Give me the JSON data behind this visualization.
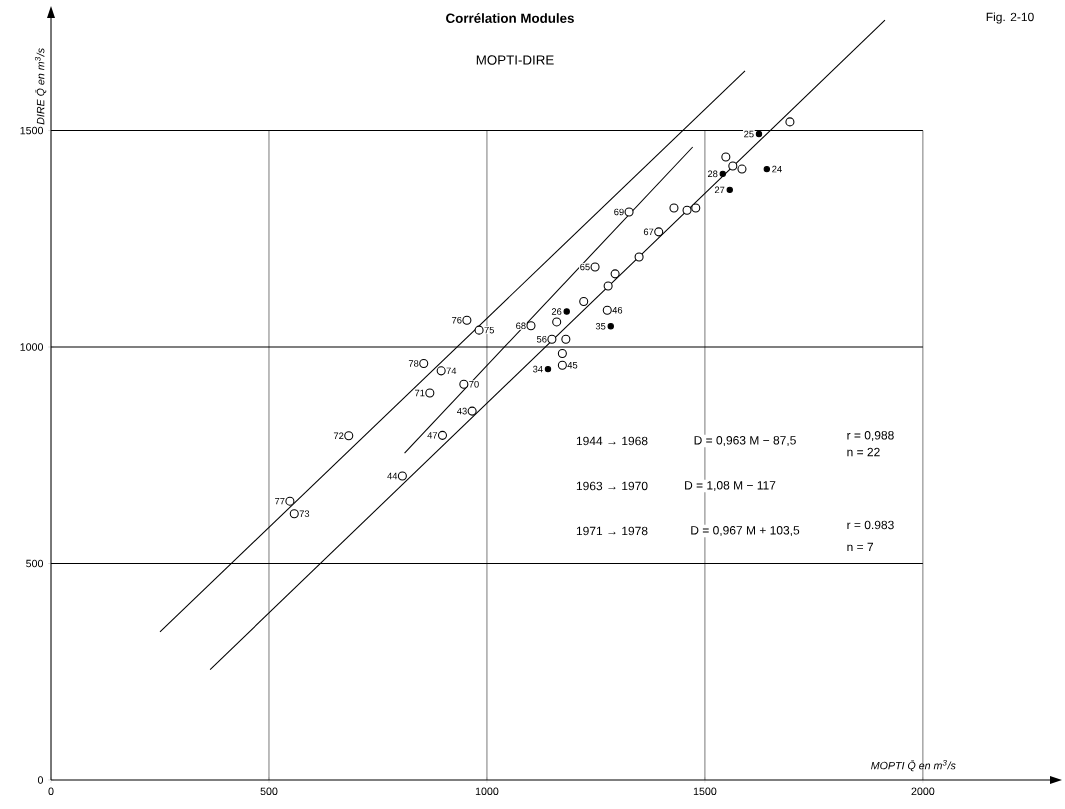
{
  "chart_data": {
    "type": "scatter",
    "title": "Corrélation Modules",
    "subtitle": "MOPTI-DIRE",
    "xlabel": "MOPTI Q̄ en m$^{3}$/s",
    "ylabel": "DIRE Q̄ en m$^{3}$/s",
    "xlim": [
      0,
      2300
    ],
    "ylim": [
      0,
      1780
    ],
    "xticks": [
      0,
      500,
      1000,
      1500,
      2000
    ],
    "yticks": [
      0,
      500,
      1000,
      1500
    ],
    "ref_lines": [
      {
        "axis": "y",
        "value": 500
      },
      {
        "axis": "y",
        "value": 1000
      },
      {
        "axis": "y",
        "value": 1500
      },
      {
        "axis": "x",
        "value": 500
      },
      {
        "axis": "x",
        "value": 1000
      },
      {
        "axis": "x",
        "value": 1500
      },
      {
        "axis": "x",
        "value": 2000
      }
    ],
    "series": [
      {
        "marker": "circle",
        "color": "#000000",
        "x": [
          548,
          558,
          683,
          806,
          898,
          869,
          855,
          895,
          947,
          966,
          954,
          982,
          1101,
          1149,
          1181,
          1173,
          1173,
          1160,
          1222,
          1276,
          1278,
          1294,
          1248,
          1349,
          1326,
          1394,
          1429,
          1459,
          1479,
          1548,
          1564,
          1585,
          1695
        ],
        "values": [
          644,
          615,
          795,
          702,
          796,
          894,
          962,
          945,
          914,
          852,
          1062,
          1039,
          1049,
          1018,
          1018,
          985,
          958,
          1058,
          1105,
          1085,
          1141,
          1169,
          1185,
          1208,
          1312,
          1266,
          1321,
          1316,
          1321,
          1439,
          1418,
          1411,
          1520
        ]
      },
      {
        "marker": "circle",
        "color": "#000000",
        "x": [
          1624,
          1541,
          1557,
          1642,
          1183,
          1284,
          1140
        ],
        "values": [
          1492,
          1400,
          1363,
          1411,
          1082,
          1048,
          949
        ]
      },
      {
        "type": "line",
        "marker": "none",
        "color": "#000000",
        "x": [
          365,
          1913
        ],
        "values": [
          255,
          1755
        ]
      },
      {
        "type": "line",
        "marker": "none",
        "color": "#000000",
        "x": [
          811,
          1472
        ],
        "values": [
          755,
          1462
        ]
      },
      {
        "type": "line",
        "marker": "none",
        "color": "#000000",
        "x": [
          250,
          1592
        ],
        "values": [
          342,
          1638
        ]
      }
    ],
    "annotations": [
      "Fig. 2-10",
      "1944 → 1968",
      "D = 0,963 M − 87,5",
      "r = 0,988",
      "n = 22",
      "1963 → 1970",
      "D = 1,08 M − 117",
      "1971 → 1978",
      "D = 0,967 M + 103,5",
      "r = 0.983",
      "n = 7",
      {
        "text": "77",
        "x": 548,
        "y": 644
      },
      {
        "text": "73",
        "x": 558,
        "y": 615
      },
      {
        "text": "72",
        "x": 683,
        "y": 795
      },
      {
        "text": "44",
        "x": 806,
        "y": 702
      },
      {
        "text": "47",
        "x": 898,
        "y": 796
      },
      {
        "text": "71",
        "x": 869,
        "y": 894
      },
      {
        "text": "78",
        "x": 855,
        "y": 962
      },
      {
        "text": "74",
        "x": 895,
        "y": 945
      },
      {
        "text": "70",
        "x": 947,
        "y": 914
      },
      {
        "text": "43",
        "x": 966,
        "y": 852
      },
      {
        "text": "76",
        "x": 954,
        "y": 1062
      },
      {
        "text": "75",
        "x": 982,
        "y": 1039
      },
      {
        "text": "68",
        "x": 1101,
        "y": 1049
      },
      {
        "text": "56",
        "x": 1149,
        "y": 1018
      },
      {
        "text": "45",
        "x": 1173,
        "y": 958
      },
      {
        "text": "34",
        "x": 1140,
        "y": 949
      },
      {
        "text": "26",
        "x": 1183,
        "y": 1082
      },
      {
        "text": "46",
        "x": 1276,
        "y": 1085
      },
      {
        "text": "35",
        "x": 1284,
        "y": 1048
      },
      {
        "text": "65",
        "x": 1248,
        "y": 1185
      },
      {
        "text": "69",
        "x": 1326,
        "y": 1312
      },
      {
        "text": "67",
        "x": 1394,
        "y": 1266
      },
      {
        "text": "25",
        "x": 1624,
        "y": 1492
      },
      {
        "text": "28",
        "x": 1541,
        "y": 1400
      },
      {
        "text": "27",
        "x": 1557,
        "y": 1363
      },
      {
        "text": "24",
        "x": 1642,
        "y": 1411
      }
    ]
  }
}
